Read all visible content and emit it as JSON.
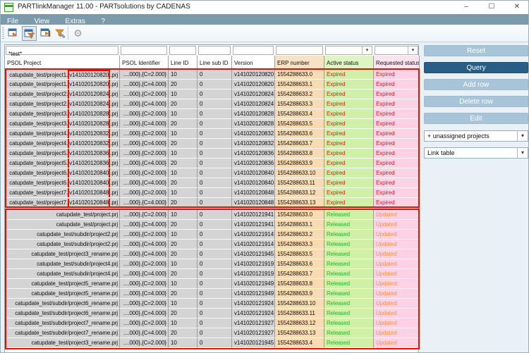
{
  "window": {
    "title": "PARTlinkManager 11.00 - PARTsolutions by CADENAS",
    "menu": [
      "File",
      "View",
      "Extras",
      "?"
    ],
    "controls": {
      "minimize": "–",
      "maximize": "☐",
      "close": "✕"
    }
  },
  "toolbar": {
    "icons": [
      "link-table-icon",
      "filter-table-icon",
      "sync-table-icon",
      "edit-filter-icon",
      "settings-gear-icon"
    ],
    "active_icon": "filter-table-icon",
    "gear_glyph": "⚙"
  },
  "filter": {
    "project": "*test*",
    "combo_arrow": "▾"
  },
  "table": {
    "columns": [
      "PSOL Project",
      "PSOL Identifier",
      "Line ID",
      "Line sub ID",
      "Version",
      "ERP number",
      "Active status",
      "Requested status"
    ],
    "rows": [
      {
        "group": 1,
        "project_prefix": "catupdate_test/project1.",
        "project_version": "v141020120820",
        "project_suffix": ".prj",
        "identifier": "....000},{C=2.000}",
        "line_id": "10",
        "line_sub_id": "0",
        "version": "v141020120820",
        "erp": "1554288633.0",
        "active": "Expired",
        "requested": "Expired"
      },
      {
        "group": 1,
        "project_prefix": "catupdate_test/project1.",
        "project_version": "v141020120820",
        "project_suffix": ".prj",
        "identifier": "....000},{C=4.000}",
        "line_id": "20",
        "line_sub_id": "0",
        "version": "v141020120820",
        "erp": "1554288633.1",
        "active": "Expired",
        "requested": "Expired"
      },
      {
        "group": 1,
        "project_prefix": "catupdate_test/project2.",
        "project_version": "v141020120824",
        "project_suffix": ".prj",
        "identifier": "....000},{C=2.000}",
        "line_id": "10",
        "line_sub_id": "0",
        "version": "v141020120824",
        "erp": "1554288633.2",
        "active": "Expired",
        "requested": "Expired"
      },
      {
        "group": 1,
        "project_prefix": "catupdate_test/project2.",
        "project_version": "v141020120824",
        "project_suffix": ".prj",
        "identifier": "....000},{C=4.000}",
        "line_id": "20",
        "line_sub_id": "0",
        "version": "v141020120824",
        "erp": "1554288633.3",
        "active": "Expired",
        "requested": "Expired"
      },
      {
        "group": 1,
        "project_prefix": "catupdate_test/project3.",
        "project_version": "v141020120828",
        "project_suffix": ".prj",
        "identifier": "....000},{C=2.000}",
        "line_id": "10",
        "line_sub_id": "0",
        "version": "v141020120828",
        "erp": "1554288633.4",
        "active": "Expired",
        "requested": "Expired"
      },
      {
        "group": 1,
        "project_prefix": "catupdate_test/project3.",
        "project_version": "v141020120828",
        "project_suffix": ".prj",
        "identifier": "....000},{C=4.000}",
        "line_id": "20",
        "line_sub_id": "0",
        "version": "v141020120828",
        "erp": "1554288633.5",
        "active": "Expired",
        "requested": "Expired"
      },
      {
        "group": 1,
        "project_prefix": "catupdate_test/project4.",
        "project_version": "v141020120832",
        "project_suffix": ".prj",
        "identifier": "....000},{C=2.000}",
        "line_id": "10",
        "line_sub_id": "0",
        "version": "v141020120832",
        "erp": "1554288633.6",
        "active": "Expired",
        "requested": "Expired"
      },
      {
        "group": 1,
        "project_prefix": "catupdate_test/project4.",
        "project_version": "v141020120832",
        "project_suffix": ".prj",
        "identifier": "....000},{C=4.000}",
        "line_id": "20",
        "line_sub_id": "0",
        "version": "v141020120832",
        "erp": "1554288633.7",
        "active": "Expired",
        "requested": "Expired"
      },
      {
        "group": 1,
        "project_prefix": "catupdate_test/project5.",
        "project_version": "v141020120836",
        "project_suffix": ".prj",
        "identifier": "....000},{C=2.000}",
        "line_id": "10",
        "line_sub_id": "0",
        "version": "v141020120836",
        "erp": "1554288633.8",
        "active": "Expired",
        "requested": "Expired"
      },
      {
        "group": 1,
        "project_prefix": "catupdate_test/project5.",
        "project_version": "v141020120836",
        "project_suffix": ".prj",
        "identifier": "....000},{C=4.000}",
        "line_id": "20",
        "line_sub_id": "0",
        "version": "v141020120836",
        "erp": "1554288633.9",
        "active": "Expired",
        "requested": "Expired"
      },
      {
        "group": 1,
        "project_prefix": "catupdate_test/project6.",
        "project_version": "v141020120840",
        "project_suffix": ".prj",
        "identifier": "....000},{C=2.000}",
        "line_id": "10",
        "line_sub_id": "0",
        "version": "v141020120840",
        "erp": "1554288633.10",
        "active": "Expired",
        "requested": "Expired"
      },
      {
        "group": 1,
        "project_prefix": "catupdate_test/project6.",
        "project_version": "v141020120840",
        "project_suffix": ".prj",
        "identifier": "....000},{C=4.000}",
        "line_id": "20",
        "line_sub_id": "0",
        "version": "v141020120840",
        "erp": "1554288633.11",
        "active": "Expired",
        "requested": "Expired"
      },
      {
        "group": 1,
        "project_prefix": "catupdate_test/project7.",
        "project_version": "v141020120848",
        "project_suffix": ".prj",
        "identifier": "....000},{C=2.000}",
        "line_id": "10",
        "line_sub_id": "0",
        "version": "v141020120848",
        "erp": "1554288633.12",
        "active": "Expired",
        "requested": "Expired"
      },
      {
        "group": 1,
        "project_prefix": "catupdate_test/project7.",
        "project_version": "v141020120848",
        "project_suffix": ".prj",
        "identifier": "....000},{C=4.000}",
        "line_id": "20",
        "line_sub_id": "0",
        "version": "v141020120848",
        "erp": "1554288633.13",
        "active": "Expired",
        "requested": "Expired"
      },
      {
        "group": 2,
        "project": "catupdate_test/project.prj",
        "identifier": "....000},{C=2.000}",
        "line_id": "10",
        "line_sub_id": "0",
        "version": "v141020121941",
        "erp": "1554288633.0",
        "active": "Released",
        "requested": "Updated"
      },
      {
        "group": 2,
        "project": "catupdate_test/project.prj",
        "identifier": "....000},{C=4.000}",
        "line_id": "20",
        "line_sub_id": "0",
        "version": "v141020121941",
        "erp": "1554288633.1",
        "active": "Released",
        "requested": "Updated"
      },
      {
        "group": 2,
        "project": "catupdate_test/subdir/project2.prj",
        "identifier": "....000},{C=2.000}",
        "line_id": "10",
        "line_sub_id": "0",
        "version": "v141020121914",
        "erp": "1554288633.2",
        "active": "Released",
        "requested": "Updated"
      },
      {
        "group": 2,
        "project": "catupdate_test/subdir/project2.prj",
        "identifier": "....000},{C=4.000}",
        "line_id": "20",
        "line_sub_id": "0",
        "version": "v141020121914",
        "erp": "1554288633.3",
        "active": "Released",
        "requested": "Updated"
      },
      {
        "group": 2,
        "project": "catupdate_test/project3_rename.prj",
        "identifier": "....000},{C=4.000}",
        "line_id": "20",
        "line_sub_id": "0",
        "version": "v141020121945",
        "erp": "1554288633.5",
        "active": "Released",
        "requested": "Updated"
      },
      {
        "group": 2,
        "project": "catupdate_test/subdir/project4.prj",
        "identifier": "....000},{C=2.000}",
        "line_id": "10",
        "line_sub_id": "0",
        "version": "v141020121919",
        "erp": "1554288633.6",
        "active": "Released",
        "requested": "Updated"
      },
      {
        "group": 2,
        "project": "catupdate_test/subdir/project4.prj",
        "identifier": "....000},{C=4.000}",
        "line_id": "20",
        "line_sub_id": "0",
        "version": "v141020121919",
        "erp": "1554288633.7",
        "active": "Released",
        "requested": "Updated"
      },
      {
        "group": 2,
        "project": "catupdate_test/project5_rename.prj",
        "identifier": "....000},{C=2.000}",
        "line_id": "10",
        "line_sub_id": "0",
        "version": "v141020121949",
        "erp": "1554288633.8",
        "active": "Released",
        "requested": "Updated"
      },
      {
        "group": 2,
        "project": "catupdate_test/project5_rename.prj",
        "identifier": "....000},{C=4.000}",
        "line_id": "20",
        "line_sub_id": "0",
        "version": "v141020121949",
        "erp": "1554288633.9",
        "active": "Released",
        "requested": "Updated"
      },
      {
        "group": 2,
        "project": "catupdate_test/subdir/project6_rename.prj",
        "identifier": "....000},{C=2.000}",
        "line_id": "10",
        "line_sub_id": "0",
        "version": "v141020121924",
        "erp": "1554288633.10",
        "active": "Released",
        "requested": "Updated"
      },
      {
        "group": 2,
        "project": "catupdate_test/subdir/project6_rename.prj",
        "identifier": "....000},{C=4.000}",
        "line_id": "20",
        "line_sub_id": "0",
        "version": "v141020121924",
        "erp": "1554288633.11",
        "active": "Released",
        "requested": "Updated"
      },
      {
        "group": 2,
        "project": "catupdate_test/subdir/project7_rename.prj",
        "identifier": "....000},{C=2.000}",
        "line_id": "10",
        "line_sub_id": "0",
        "version": "v141020121927",
        "erp": "1554288633.12",
        "active": "Released",
        "requested": "Updated"
      },
      {
        "group": 2,
        "project": "catupdate_test/subdir/project7_rename.prj",
        "identifier": "....000},{C=4.000}",
        "line_id": "20",
        "line_sub_id": "0",
        "version": "v141020121927",
        "erp": "1554288633.13",
        "active": "Released",
        "requested": "Updated"
      },
      {
        "group": 2,
        "project": "catupdate_test/project3_rename.prj",
        "identifier": "....000},{C=2.000}",
        "line_id": "10",
        "line_sub_id": "0",
        "version": "v141020121945",
        "erp": "1554288633.4",
        "active": "Released",
        "requested": "Updated"
      }
    ]
  },
  "buttons": {
    "reset": "Reset",
    "query": "Query",
    "add_row": "Add row",
    "delete_row": "Delete row",
    "edit": "Edit"
  },
  "combos": {
    "projects": "+ unassigned projects",
    "link_table": "Link table",
    "arrow": "▾"
  },
  "colors": {
    "menubar": "#7d9aab",
    "button_light": "#a7c4d9",
    "button_dark": "#2a5d84",
    "row_gray": "#d4d4d4",
    "erp_bg": "#f8dbb2",
    "active_bg": "#cff0a6",
    "requested_bg": "#fdd2e5",
    "expired_text": "#e11c1c",
    "released_text": "#2eb02e",
    "updated_text": "#f5944d",
    "annotation_red": "#e80f00"
  }
}
